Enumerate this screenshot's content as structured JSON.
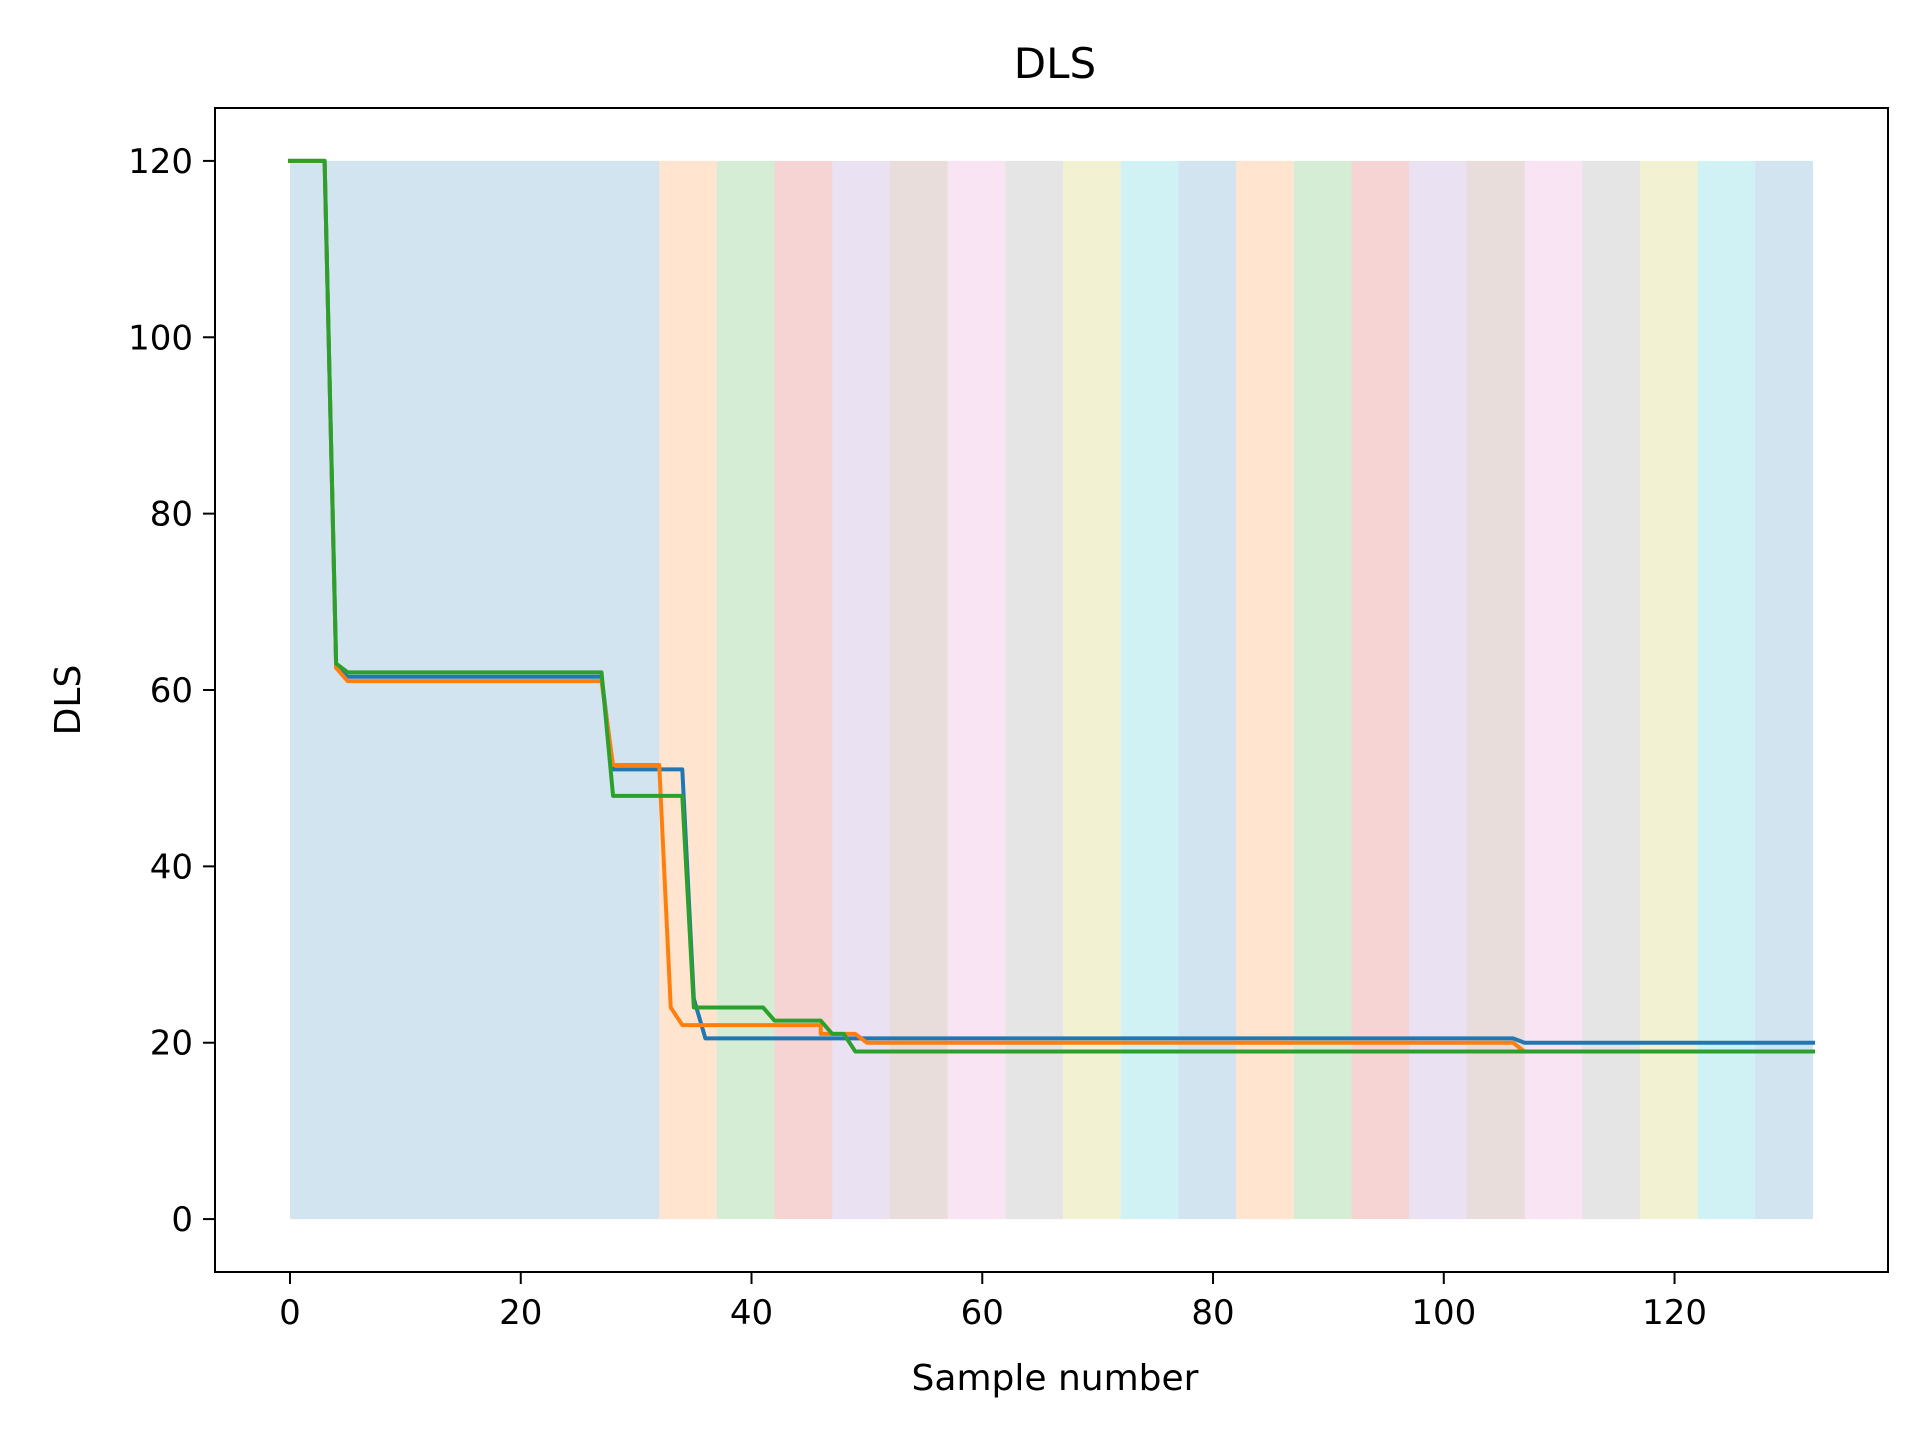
{
  "chart_data": {
    "type": "line",
    "title": "DLS",
    "xlabel": "Sample number",
    "ylabel": "DLS",
    "xlim": [
      -6.5,
      138.5
    ],
    "ylim": [
      -6,
      126
    ],
    "xticks": [
      0,
      20,
      40,
      60,
      80,
      100,
      120
    ],
    "yticks": [
      0,
      20,
      40,
      60,
      80,
      100,
      120
    ],
    "grid": false,
    "band_colors": [
      "#1f77b4",
      "#ff7f0e",
      "#2ca02c",
      "#d62728",
      "#9467bd",
      "#8c564b",
      "#e377c2",
      "#7f7f7f",
      "#bcbd22",
      "#17becf"
    ],
    "band_opacity": 0.2,
    "bands": [
      {
        "x0": 0,
        "x1": 32
      },
      {
        "x0": 32,
        "x1": 37
      },
      {
        "x0": 37,
        "x1": 42
      },
      {
        "x0": 42,
        "x1": 47
      },
      {
        "x0": 47,
        "x1": 52
      },
      {
        "x0": 52,
        "x1": 57
      },
      {
        "x0": 57,
        "x1": 62
      },
      {
        "x0": 62,
        "x1": 67
      },
      {
        "x0": 67,
        "x1": 72
      },
      {
        "x0": 72,
        "x1": 77
      },
      {
        "x0": 77,
        "x1": 82
      },
      {
        "x0": 82,
        "x1": 87
      },
      {
        "x0": 87,
        "x1": 92
      },
      {
        "x0": 92,
        "x1": 97
      },
      {
        "x0": 97,
        "x1": 102
      },
      {
        "x0": 102,
        "x1": 107
      },
      {
        "x0": 107,
        "x1": 112
      },
      {
        "x0": 112,
        "x1": 117
      },
      {
        "x0": 117,
        "x1": 122
      },
      {
        "x0": 122,
        "x1": 127
      },
      {
        "x0": 127,
        "x1": 132
      }
    ],
    "series": [
      {
        "color": "#1f77b4",
        "points": [
          [
            0,
            120
          ],
          [
            3,
            120
          ],
          [
            4,
            62.5
          ],
          [
            5,
            61.5
          ],
          [
            27,
            61.5
          ],
          [
            28,
            51
          ],
          [
            34,
            51
          ],
          [
            35,
            25
          ],
          [
            36,
            20.5
          ],
          [
            48,
            20.5
          ],
          [
            49,
            20.5
          ],
          [
            50,
            20.5
          ],
          [
            106,
            20.5
          ],
          [
            107,
            20
          ],
          [
            132,
            20
          ]
        ]
      },
      {
        "color": "#ff7f0e",
        "points": [
          [
            0,
            120
          ],
          [
            3,
            120
          ],
          [
            4,
            62.5
          ],
          [
            5,
            61
          ],
          [
            27,
            61
          ],
          [
            28,
            51.5
          ],
          [
            32,
            51.5
          ],
          [
            33,
            24
          ],
          [
            34,
            22
          ],
          [
            46,
            22
          ],
          [
            46,
            21
          ],
          [
            48,
            21
          ],
          [
            49,
            21
          ],
          [
            50,
            20
          ],
          [
            106,
            20
          ],
          [
            107,
            19
          ],
          [
            132,
            19
          ]
        ]
      },
      {
        "color": "#2ca02c",
        "points": [
          [
            0,
            120
          ],
          [
            3,
            120
          ],
          [
            4,
            63
          ],
          [
            5,
            62
          ],
          [
            27,
            62
          ],
          [
            28,
            48
          ],
          [
            34,
            48
          ],
          [
            35,
            24
          ],
          [
            41,
            24
          ],
          [
            42,
            22.5
          ],
          [
            46,
            22.5
          ],
          [
            47,
            21
          ],
          [
            48,
            21
          ],
          [
            49,
            19
          ],
          [
            132,
            19
          ]
        ]
      }
    ]
  }
}
